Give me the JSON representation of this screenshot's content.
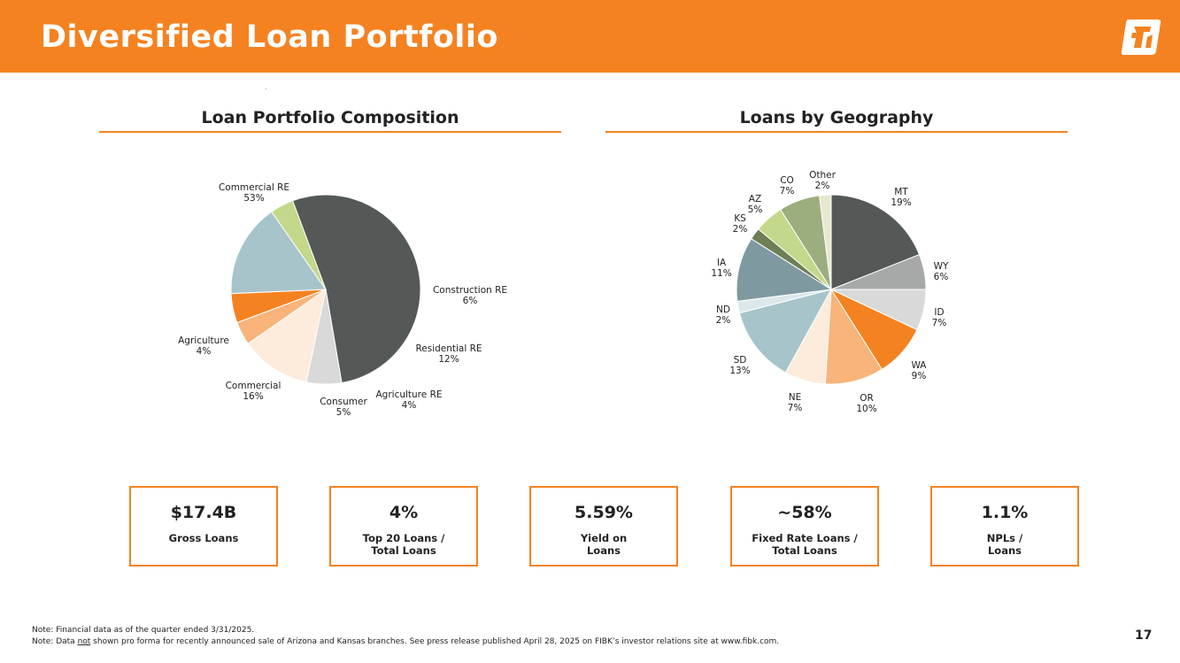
{
  "header": {
    "title": "Diversified Loan Portfolio"
  },
  "colors": {
    "accent": "#F58220"
  },
  "chart_data": [
    {
      "type": "pie",
      "title": "Loan Portfolio Composition",
      "slices": [
        {
          "label": "Commercial RE",
          "value": 53,
          "pct": "53%",
          "color": "#545857"
        },
        {
          "label": "Construction RE",
          "value": 6,
          "pct": "6%",
          "color": "#D9D9D9"
        },
        {
          "label": "Residential RE",
          "value": 12,
          "pct": "12%",
          "color": "#FDEBDC"
        },
        {
          "label": "Agriculture RE",
          "value": 4,
          "pct": "4%",
          "color": "#F8B47A"
        },
        {
          "label": "Consumer",
          "value": 5,
          "pct": "5%",
          "color": "#F58220"
        },
        {
          "label": "Commercial",
          "value": 16,
          "pct": "16%",
          "color": "#A7C4CA"
        },
        {
          "label": "Agriculture",
          "value": 4,
          "pct": "4%",
          "color": "#C3D88A"
        }
      ]
    },
    {
      "type": "pie",
      "title": "Loans by Geography",
      "slices": [
        {
          "label": "MT",
          "value": 19,
          "pct": "19%",
          "color": "#545857"
        },
        {
          "label": "WY",
          "value": 6,
          "pct": "6%",
          "color": "#A6A9A8"
        },
        {
          "label": "ID",
          "value": 7,
          "pct": "7%",
          "color": "#D9D9D9"
        },
        {
          "label": "WA",
          "value": 9,
          "pct": "9%",
          "color": "#F58220"
        },
        {
          "label": "OR",
          "value": 10,
          "pct": "10%",
          "color": "#F8B47A"
        },
        {
          "label": "NE",
          "value": 7,
          "pct": "7%",
          "color": "#FDEBDC"
        },
        {
          "label": "SD",
          "value": 13,
          "pct": "13%",
          "color": "#A7C4CA"
        },
        {
          "label": "ND",
          "value": 2,
          "pct": "2%",
          "color": "#DCE8EA"
        },
        {
          "label": "IA",
          "value": 11,
          "pct": "11%",
          "color": "#7E9AA0"
        },
        {
          "label": "KS",
          "value": 2,
          "pct": "2%",
          "color": "#6E7E55"
        },
        {
          "label": "AZ",
          "value": 5,
          "pct": "5%",
          "color": "#C3D88A"
        },
        {
          "label": "CO",
          "value": 7,
          "pct": "7%",
          "color": "#9CAE7E"
        },
        {
          "label": "Other",
          "value": 2,
          "pct": "2%",
          "color": "#E7E8CF"
        }
      ]
    }
  ],
  "kpis": [
    {
      "value": "$17.4B",
      "label": "Gross Loans"
    },
    {
      "value": "4%",
      "label": "Top 20 Loans /\nTotal Loans"
    },
    {
      "value": "5.59%",
      "label": "Yield on\nLoans"
    },
    {
      "value": "~58%",
      "label": "Fixed Rate Loans /\nTotal Loans"
    },
    {
      "value": "1.1%",
      "label": "NPLs /\nLoans"
    }
  ],
  "notes": {
    "note1": "Note: Financial data as of the quarter ended 3/31/2025.",
    "note2_prefix": "Note: Data ",
    "note2_underline": "not",
    "note2_suffix": " shown pro forma for recently announced sale of Arizona and Kansas branches. See press release published April 28, 2025 on FIBK’s investor relations site at www.fibk.com."
  },
  "page_number": "17"
}
